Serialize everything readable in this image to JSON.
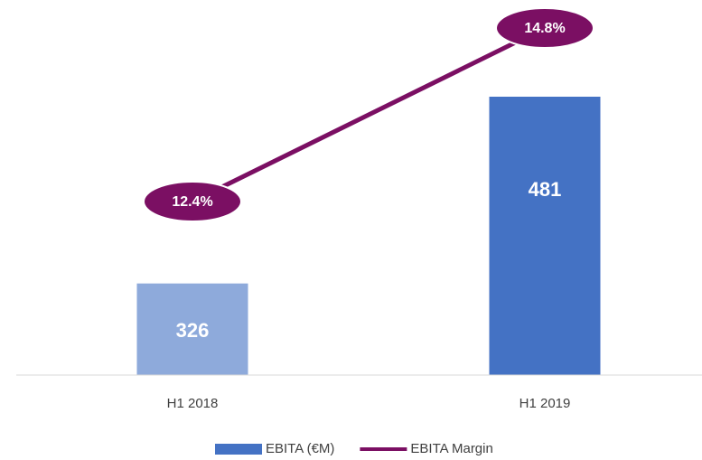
{
  "chart_data": {
    "type": "bar-line",
    "categories": [
      "H1 2018",
      "H1 2019"
    ],
    "series": [
      {
        "name": "EBITA (€M)",
        "type": "bar",
        "color": "#4472c4",
        "colors": [
          "#8eaadb",
          "#4472c4"
        ],
        "values": [
          326,
          481
        ]
      },
      {
        "name": "EBITA Margin",
        "type": "line",
        "axis": "y2",
        "color": "#7b0f63",
        "values": [
          12.4,
          14.8
        ],
        "value_labels": [
          "12.4%",
          "14.8%"
        ]
      }
    ],
    "ylim": [
      250,
      550
    ],
    "y2lim": [
      10,
      15
    ],
    "legend": "bottom"
  }
}
